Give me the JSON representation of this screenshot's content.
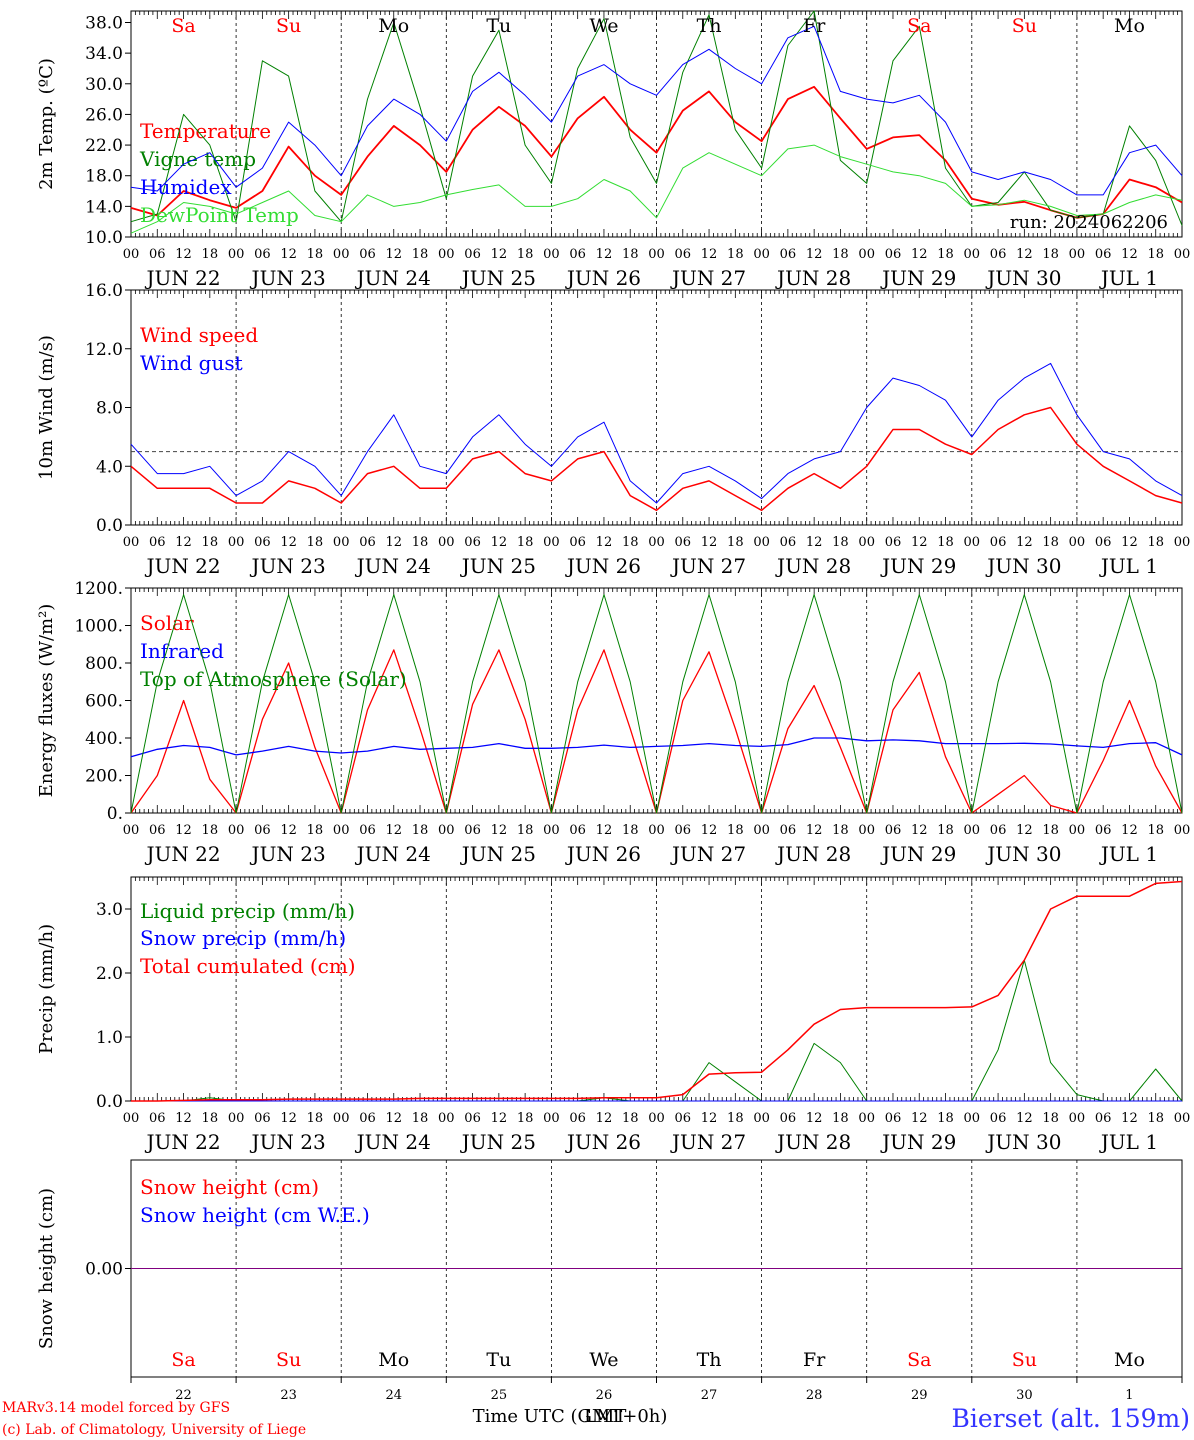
{
  "footer": {
    "credit_line1": "MARv3.14 model forced by GFS",
    "credit_line2": "(c) Lab. of Climatology, University of Liege",
    "xlabel": "Time UTC (GMT+0h)",
    "xlabel_overlap": "LMT",
    "station": "Bierset (alt. 159m)"
  },
  "axis": {
    "hour_ticks": [
      "00",
      "06",
      "12",
      "18"
    ],
    "final_tick": "00",
    "date_labels": [
      "JUN 22",
      "JUN 23",
      "JUN 24",
      "JUN 25",
      "JUN 26",
      "JUN 27",
      "JUN 28",
      "JUN 29",
      "JUN 30",
      "JUL  1"
    ],
    "day_names": [
      "Sa",
      "Su",
      "Mo",
      "Tu",
      "We",
      "Th",
      "Fr",
      "Sa",
      "Su",
      "Mo"
    ],
    "weekend_flags": [
      true,
      true,
      false,
      false,
      false,
      false,
      false,
      true,
      true,
      false
    ],
    "day_numbers": [
      "22",
      "23",
      "24",
      "25",
      "26",
      "27",
      "28",
      "29",
      "30",
      "1"
    ]
  },
  "colors": {
    "red": "#ff0000",
    "green": "#008000",
    "blue": "#0000ff",
    "lightgreen": "#33dd33",
    "purple": "#800080"
  },
  "chart_data": [
    {
      "type": "line",
      "ylabel": "2m Temp. (ºC)",
      "ylim": [
        10,
        39.5
      ],
      "yticks": [
        "10.0",
        "14.0",
        "18.0",
        "22.0",
        "26.0",
        "30.0",
        "34.0",
        "38.0"
      ],
      "ytick_values": [
        10,
        14,
        18,
        22,
        26,
        30,
        34,
        38
      ],
      "annotation": "run: 2024062206",
      "x_hours": [
        0,
        6,
        12,
        18,
        24,
        30,
        36,
        42,
        48,
        54,
        60,
        66,
        72,
        78,
        84,
        90,
        96,
        102,
        108,
        114,
        120,
        126,
        132,
        138,
        144,
        150,
        156,
        162,
        168,
        174,
        180,
        186,
        192,
        198,
        204,
        210,
        216,
        222,
        228,
        234,
        240
      ],
      "series": [
        {
          "name": "Temperature",
          "color": "red",
          "width": 1.8,
          "values": [
            13.8,
            12.8,
            16.0,
            14.8,
            13.8,
            16.0,
            21.8,
            18.0,
            15.5,
            20.5,
            24.5,
            22.0,
            18.5,
            24.0,
            27.0,
            24.5,
            20.5,
            25.5,
            28.3,
            24.0,
            21.0,
            26.5,
            29.0,
            25.0,
            22.5,
            28.0,
            29.6,
            25.5,
            21.5,
            23.0,
            23.3,
            20.0,
            15.0,
            14.2,
            14.6,
            13.5,
            12.5,
            13.0,
            17.5,
            16.5,
            14.5
          ]
        },
        {
          "name": "Vigne temp",
          "color": "green",
          "width": 1,
          "values": [
            12.0,
            13.0,
            26.0,
            22.0,
            12.0,
            33.0,
            31.0,
            16.0,
            12.0,
            28.0,
            38.0,
            27.0,
            15.0,
            31.0,
            37.0,
            22.0,
            17.0,
            32.0,
            38.5,
            23.0,
            17.0,
            31.5,
            39.0,
            24.0,
            19.0,
            35.0,
            39.5,
            20.0,
            17.0,
            33.0,
            37.5,
            19.0,
            14.0,
            14.5,
            18.5,
            13.5,
            12.5,
            13.0,
            24.5,
            20.0,
            11.5
          ]
        },
        {
          "name": "Humidex",
          "color": "blue",
          "width": 1,
          "values": [
            16.5,
            16.0,
            19.5,
            21.0,
            16.5,
            19.0,
            25.0,
            22.0,
            18.0,
            24.5,
            28.0,
            26.0,
            22.5,
            29.0,
            31.5,
            28.5,
            25.0,
            31.0,
            32.5,
            30.0,
            28.5,
            32.5,
            34.5,
            32.0,
            30.0,
            36.0,
            37.5,
            29.0,
            28.0,
            27.5,
            28.5,
            25.0,
            18.5,
            17.5,
            18.5,
            17.5,
            15.5,
            15.5,
            21.0,
            22.0,
            18.0
          ]
        },
        {
          "name": "DewPoint Temp",
          "color": "lightgreen",
          "width": 1,
          "values": [
            10.5,
            12.0,
            14.5,
            14.0,
            13.0,
            14.5,
            16.0,
            12.8,
            12.0,
            15.5,
            14.0,
            14.5,
            15.5,
            16.2,
            16.8,
            14.0,
            14.0,
            15.0,
            17.5,
            16.0,
            12.5,
            19.0,
            21.0,
            19.5,
            18.0,
            21.5,
            22.0,
            20.5,
            19.5,
            18.5,
            18.0,
            17.0,
            14.0,
            14.2,
            14.8,
            14.0,
            12.8,
            13.0,
            14.5,
            15.5,
            14.8
          ]
        }
      ]
    },
    {
      "type": "line",
      "ylabel": "10m Wind (m/s)",
      "ylim": [
        0,
        16
      ],
      "yticks": [
        "0.0",
        "4.0",
        "8.0",
        "12.0",
        "16.0"
      ],
      "ytick_values": [
        0,
        4,
        8,
        12,
        16
      ],
      "reference_line": 5,
      "x_hours": [
        0,
        6,
        12,
        18,
        24,
        30,
        36,
        42,
        48,
        54,
        60,
        66,
        72,
        78,
        84,
        90,
        96,
        102,
        108,
        114,
        120,
        126,
        132,
        138,
        144,
        150,
        156,
        162,
        168,
        174,
        180,
        186,
        192,
        198,
        204,
        210,
        216,
        222,
        228,
        234,
        240
      ],
      "series": [
        {
          "name": "Wind speed",
          "color": "red",
          "width": 1.5,
          "values": [
            4.0,
            2.5,
            2.5,
            2.5,
            1.5,
            1.5,
            3.0,
            2.5,
            1.5,
            3.5,
            4.0,
            2.5,
            2.5,
            4.5,
            5.0,
            3.5,
            3.0,
            4.5,
            5.0,
            2.0,
            1.0,
            2.5,
            3.0,
            2.0,
            1.0,
            2.5,
            3.5,
            2.5,
            4.0,
            6.5,
            6.5,
            5.5,
            4.8,
            6.5,
            7.5,
            8.0,
            5.5,
            4.0,
            3.0,
            2.0,
            1.5
          ]
        },
        {
          "name": "Wind gust",
          "color": "blue",
          "width": 1,
          "values": [
            5.5,
            3.5,
            3.5,
            4.0,
            2.0,
            3.0,
            5.0,
            4.0,
            2.0,
            5.0,
            7.5,
            4.0,
            3.5,
            6.0,
            7.5,
            5.5,
            4.0,
            6.0,
            7.0,
            3.0,
            1.5,
            3.5,
            4.0,
            3.0,
            1.8,
            3.5,
            4.5,
            5.0,
            8.0,
            10.0,
            9.5,
            8.5,
            6.0,
            8.5,
            10.0,
            11.0,
            7.5,
            5.0,
            4.5,
            3.0,
            2.0
          ]
        }
      ]
    },
    {
      "type": "line",
      "ylabel": "Energy fluxes (W/m²)",
      "ylim": [
        0,
        1200
      ],
      "yticks": [
        "0.",
        "200.",
        "400.",
        "600.",
        "800.",
        "1000.",
        "1200."
      ],
      "ytick_values": [
        0,
        200,
        400,
        600,
        800,
        1000,
        1200
      ],
      "x_hours": [
        0,
        6,
        12,
        18,
        24,
        30,
        36,
        42,
        48,
        54,
        60,
        66,
        72,
        78,
        84,
        90,
        96,
        102,
        108,
        114,
        120,
        126,
        132,
        138,
        144,
        150,
        156,
        162,
        168,
        174,
        180,
        186,
        192,
        198,
        204,
        210,
        216,
        222,
        228,
        234,
        240
      ],
      "series": [
        {
          "name": "Solar",
          "color": "red",
          "width": 1.3,
          "values": [
            0,
            200,
            600,
            180,
            0,
            500,
            800,
            350,
            0,
            550,
            870,
            450,
            0,
            580,
            870,
            500,
            0,
            550,
            870,
            450,
            0,
            600,
            860,
            450,
            0,
            450,
            680,
            350,
            0,
            550,
            750,
            300,
            0,
            100,
            200,
            40,
            0,
            280,
            600,
            250,
            0
          ]
        },
        {
          "name": "Infrared",
          "color": "blue",
          "width": 1.3,
          "values": [
            300,
            340,
            360,
            350,
            310,
            330,
            355,
            330,
            320,
            330,
            355,
            340,
            345,
            350,
            370,
            345,
            345,
            350,
            362,
            350,
            355,
            360,
            370,
            360,
            355,
            365,
            400,
            400,
            385,
            390,
            385,
            370,
            370,
            370,
            372,
            368,
            358,
            350,
            370,
            375,
            310
          ]
        },
        {
          "name": "Top of Atmosphere (Solar)",
          "color": "green",
          "width": 1,
          "values": [
            0,
            700,
            1165,
            700,
            0,
            700,
            1165,
            700,
            0,
            700,
            1165,
            700,
            0,
            700,
            1165,
            700,
            0,
            700,
            1165,
            700,
            0,
            700,
            1165,
            700,
            0,
            700,
            1165,
            700,
            0,
            700,
            1165,
            700,
            0,
            700,
            1165,
            700,
            0,
            700,
            1165,
            700,
            0
          ]
        }
      ]
    },
    {
      "type": "line",
      "ylabel": "Precip (mm/h)",
      "ylim": [
        0,
        3.5
      ],
      "yticks": [
        "0.0",
        "1.0",
        "2.0",
        "3.0"
      ],
      "ytick_values": [
        0,
        1,
        2,
        3
      ],
      "x_hours": [
        0,
        6,
        12,
        18,
        24,
        30,
        36,
        42,
        48,
        54,
        60,
        66,
        72,
        78,
        84,
        90,
        96,
        102,
        108,
        114,
        120,
        126,
        132,
        138,
        144,
        150,
        156,
        162,
        168,
        174,
        180,
        186,
        192,
        198,
        204,
        210,
        216,
        222,
        228,
        234,
        240
      ],
      "series": [
        {
          "name": "Liquid precip (mm/h)",
          "color": "green",
          "width": 1,
          "values": [
            0,
            0,
            0,
            0.05,
            0,
            0,
            0,
            0,
            0,
            0,
            0,
            0,
            0,
            0,
            0,
            0,
            0,
            0,
            0.05,
            0,
            0,
            0,
            0.6,
            0.3,
            0,
            0,
            0.9,
            0.6,
            0,
            0,
            0,
            0,
            0,
            0.8,
            2.2,
            0.6,
            0.1,
            0,
            0,
            0.5,
            0
          ]
        },
        {
          "name": "Snow precip (mm/h)",
          "color": "blue",
          "width": 1,
          "values": [
            0,
            0,
            0,
            0,
            0,
            0,
            0,
            0,
            0,
            0,
            0,
            0,
            0,
            0,
            0,
            0,
            0,
            0,
            0,
            0,
            0,
            0,
            0,
            0,
            0,
            0,
            0,
            0,
            0,
            0,
            0,
            0,
            0,
            0,
            0,
            0,
            0,
            0,
            0,
            0,
            0
          ]
        },
        {
          "name": "Total cumulated (cm)",
          "color": "red",
          "width": 1.5,
          "values": [
            0,
            0,
            0.01,
            0.02,
            0.02,
            0.02,
            0.03,
            0.03,
            0.03,
            0.03,
            0.03,
            0.04,
            0.04,
            0.04,
            0.04,
            0.04,
            0.04,
            0.04,
            0.05,
            0.05,
            0.05,
            0.1,
            0.42,
            0.44,
            0.45,
            0.8,
            1.2,
            1.43,
            1.46,
            1.46,
            1.46,
            1.46,
            1.47,
            1.65,
            2.2,
            3.0,
            3.2,
            3.2,
            3.2,
            3.4,
            3.43
          ]
        }
      ]
    },
    {
      "type": "line",
      "ylabel": "Snow height (cm)",
      "ylim": [
        -1,
        1
      ],
      "yticks": [
        "0.00"
      ],
      "ytick_values": [
        0
      ],
      "x_hours": [
        0,
        240
      ],
      "series": [
        {
          "name": "Snow height (cm)",
          "color": "red",
          "width": 1,
          "values": [
            0,
            0
          ]
        },
        {
          "name": "Snow height (cm W.E.)",
          "color": "blue",
          "width": 1,
          "values": [
            0,
            0
          ]
        }
      ]
    }
  ]
}
